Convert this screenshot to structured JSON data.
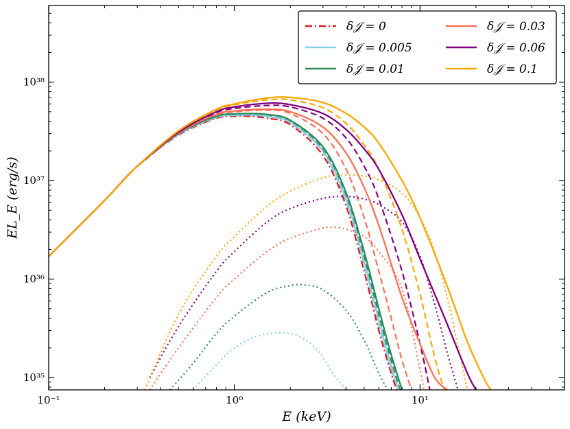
{
  "chart_data": {
    "type": "line",
    "xlabel": "E (keV)",
    "ylabel": "EL_E (erg/s)",
    "xscale": "log",
    "yscale": "log",
    "xlim": [
      0.1,
      60
    ],
    "ylim": [
      7.5e+34,
      6e+38
    ],
    "x_ticks": [
      {
        "value": 0.1,
        "label": "10⁻¹"
      },
      {
        "value": 1,
        "label": "10⁰"
      },
      {
        "value": 10,
        "label": "10¹"
      }
    ],
    "y_ticks": [
      {
        "value": 1e+35,
        "label": "10³⁵"
      },
      {
        "value": 1e+36,
        "label": "10³⁶"
      },
      {
        "value": 1e+37,
        "label": "10³⁷"
      },
      {
        "value": 1e+38,
        "label": "10³⁸"
      }
    ],
    "legend_position": "top-right",
    "line_styles": {
      "solid": "total spectrum",
      "dashed": "additional component",
      "dotted": "additional component"
    },
    "series": [
      {
        "name": "δ𝒥 = 0",
        "color": "#e41a1c",
        "style": "dashdot",
        "x": [
          0.1,
          0.2,
          0.3,
          0.5,
          0.8,
          1.0,
          1.2,
          1.5,
          2.0,
          3.0,
          4.0,
          5.0,
          6.0,
          7.0,
          7.5
        ],
        "y": [
          1.7e+36,
          6.3e+36,
          1.4e+37,
          2.9e+37,
          4.3e+37,
          4.5e+37,
          4.5e+37,
          4.3e+37,
          3.7e+37,
          1.8e+37,
          5.5e+36,
          1.2e+36,
          3e+35,
          1.1e+35,
          7.5e+34
        ]
      },
      {
        "name": "δ𝒥 = 0.005",
        "color": "#87ceeb",
        "style": "solid",
        "x": [
          0.1,
          0.2,
          0.3,
          0.5,
          0.8,
          1.0,
          1.2,
          1.5,
          2.0,
          3.0,
          4.0,
          5.0,
          6.0,
          7.0,
          7.7
        ],
        "y": [
          1.7e+36,
          6.3e+36,
          1.4e+37,
          2.95e+37,
          4.4e+37,
          4.6e+37,
          4.65e+37,
          4.5e+37,
          3.9e+37,
          2e+37,
          6.5e+36,
          1.5e+36,
          3.8e+35,
          1.3e+35,
          7.5e+34
        ]
      },
      {
        "name": "δ𝒥 = 0.01",
        "color": "#2e8b57",
        "style": "solid",
        "x": [
          0.1,
          0.2,
          0.3,
          0.5,
          0.8,
          1.0,
          1.2,
          1.5,
          2.0,
          3.0,
          4.0,
          5.0,
          6.0,
          7.0,
          8.0
        ],
        "y": [
          1.7e+36,
          6.3e+36,
          1.4e+37,
          3e+37,
          4.5e+37,
          4.75e+37,
          4.8e+37,
          4.7e+37,
          4.1e+37,
          2.2e+37,
          7.5e+36,
          1.9e+36,
          5e+35,
          1.7e+35,
          7.5e+34
        ]
      },
      {
        "name": "δ𝒥 = 0.03",
        "color": "#fa6f55",
        "style": "solid",
        "x": [
          0.1,
          0.2,
          0.3,
          0.5,
          0.8,
          1.0,
          1.5,
          2.0,
          3.0,
          4.0,
          5.0,
          6.0,
          8.0,
          10.0,
          12.0,
          14.0
        ],
        "y": [
          1.7e+36,
          6.3e+36,
          1.4e+37,
          3.05e+37,
          4.7e+37,
          5.1e+37,
          5.3e+37,
          5e+37,
          3.5e+37,
          1.9e+37,
          8.5e+36,
          3.5e+36,
          6.5e+35,
          2.2e+35,
          1e+35,
          7.5e+34
        ]
      },
      {
        "name": "δ𝒥 = 0.06",
        "color": "#800080",
        "style": "solid",
        "x": [
          0.1,
          0.2,
          0.3,
          0.5,
          0.8,
          1.0,
          1.5,
          2.0,
          3.0,
          4.0,
          5.0,
          6.0,
          8.0,
          10.0,
          14.0,
          18.0,
          20.0
        ],
        "y": [
          1.7e+36,
          6.3e+36,
          1.4e+37,
          3.1e+37,
          5e+37,
          5.6e+37,
          6.1e+37,
          5.9e+37,
          4.8e+37,
          3.3e+37,
          2.1e+37,
          1.3e+37,
          4.5e+36,
          1.6e+36,
          3.5e+35,
          1.1e+35,
          7.5e+34
        ]
      },
      {
        "name": "δ𝒥 = 0.1",
        "color": "#ffa500",
        "style": "solid",
        "x": [
          0.1,
          0.2,
          0.3,
          0.5,
          0.8,
          1.0,
          1.5,
          2.0,
          3.0,
          4.0,
          5.0,
          6.0,
          8.0,
          10.0,
          14.0,
          18.0,
          22.0,
          24.0
        ],
        "y": [
          1.7e+36,
          6.3e+36,
          1.4e+37,
          3.2e+37,
          5.3e+37,
          6e+37,
          6.9e+37,
          7e+37,
          6.2e+37,
          4.8e+37,
          3.5e+37,
          2.4e+37,
          1e+37,
          4.2e+36,
          8.5e+35,
          2.3e+35,
          1e+35,
          7.5e+34
        ]
      }
    ],
    "extra_curves": [
      {
        "color": "#87ceeb",
        "style": "dashed",
        "x": [
          0.3,
          0.5,
          0.8,
          1.0,
          1.5,
          2.0,
          3.0,
          4.0,
          5.0,
          6.0,
          7.0,
          7.5
        ],
        "y": [
          1.4e+37,
          2.95e+37,
          4.35e+37,
          4.6e+37,
          4.45e+37,
          3.85e+37,
          1.95e+37,
          6e+36,
          1.4e+36,
          3.4e+35,
          1.2e+35,
          7.5e+34
        ]
      },
      {
        "color": "#2e8b57",
        "style": "dashed",
        "x": [
          0.3,
          0.5,
          0.8,
          1.0,
          1.5,
          2.0,
          3.0,
          4.0,
          5.0,
          6.0,
          7.0,
          7.8
        ],
        "y": [
          1.4e+37,
          2.95e+37,
          4.4e+37,
          4.7e+37,
          4.6e+37,
          4e+37,
          2.1e+37,
          7e+36,
          1.7e+36,
          4.3e+35,
          1.5e+35,
          7.5e+34
        ]
      },
      {
        "color": "#fa6f55",
        "style": "dashed",
        "x": [
          0.3,
          0.5,
          0.8,
          1.0,
          1.5,
          2.0,
          3.0,
          4.0,
          5.0,
          6.0,
          7.0,
          8.0,
          9.0
        ],
        "y": [
          1.4e+37,
          3e+37,
          4.6e+37,
          5e+37,
          5.2e+37,
          4.8e+37,
          3e+37,
          1.3e+37,
          4.2e+36,
          1.2e+36,
          4e+35,
          1.5e+35,
          7.5e+34
        ]
      },
      {
        "color": "#800080",
        "style": "dashed",
        "x": [
          0.3,
          0.5,
          0.8,
          1.0,
          1.5,
          2.0,
          3.0,
          4.0,
          5.0,
          6.0,
          8.0,
          10.0,
          11.3
        ],
        "y": [
          1.4e+37,
          3.05e+37,
          4.9e+37,
          5.4e+37,
          5.8e+37,
          5.6e+37,
          4.3e+37,
          2.7e+37,
          1.4e+37,
          6.5e+36,
          1.2e+36,
          2.2e+35,
          7.5e+34
        ]
      },
      {
        "color": "#ffa500",
        "style": "dashed",
        "x": [
          0.3,
          0.5,
          0.8,
          1.0,
          1.5,
          2.0,
          3.0,
          4.0,
          5.0,
          6.0,
          8.0,
          10.0,
          12.0,
          13.5
        ],
        "y": [
          1.4e+37,
          3.15e+37,
          5.2e+37,
          5.9e+37,
          6.6e+37,
          6.6e+37,
          5.5e+37,
          3.8e+37,
          2.3e+37,
          1.3e+37,
          3.2e+36,
          7e+35,
          1.6e+35,
          7.5e+34
        ]
      },
      {
        "color": "#87ceeb",
        "style": "dotted",
        "x": [
          0.6,
          0.8,
          1.0,
          1.3,
          1.7,
          2.2,
          2.8,
          3.4,
          4.0
        ],
        "y": [
          7.5e+34,
          1.35e+35,
          2e+35,
          2.6e+35,
          2.85e+35,
          2.65e+35,
          1.9e+35,
          1.1e+35,
          7.5e+34
        ]
      },
      {
        "color": "#2e8b57",
        "style": "dotted",
        "x": [
          0.45,
          0.6,
          0.8,
          1.0,
          1.5,
          2.0,
          2.4,
          3.0,
          4.0,
          5.0,
          6.0,
          6.7
        ],
        "y": [
          7.5e+34,
          1.4e+35,
          2.8e+35,
          4.2e+35,
          7.3e+35,
          8.6e+35,
          8.7e+35,
          7.8e+35,
          4.8e+35,
          2.4e+35,
          1.1e+35,
          7.5e+34
        ]
      },
      {
        "color": "#fa6f55",
        "style": "dotted",
        "x": [
          0.35,
          0.5,
          0.8,
          1.0,
          1.5,
          2.0,
          3.0,
          3.5,
          4.0,
          5.0,
          6.0,
          8.0,
          10.0,
          10.5
        ],
        "y": [
          7.5e+34,
          2e+35,
          6.5e+35,
          1e+36,
          1.9e+36,
          2.6e+36,
          3.3e+36,
          3.35e+36,
          3.2e+36,
          2.7e+36,
          1.9e+36,
          8e+35,
          1.2e+35,
          7.5e+34
        ]
      },
      {
        "color": "#800080",
        "style": "dotted",
        "x": [
          0.35,
          0.5,
          0.8,
          1.0,
          1.5,
          2.0,
          3.0,
          4.0,
          5.0,
          6.0,
          8.0,
          10.0,
          12.0,
          14.0,
          16.0
        ],
        "y": [
          1e+35,
          3.3e+35,
          1.2e+36,
          1.9e+36,
          3.8e+36,
          5.2e+36,
          6.6e+36,
          6.9e+36,
          6.5e+36,
          5.7e+36,
          3.8e+36,
          1.7e+36,
          5.5e+35,
          1.8e+35,
          7.5e+34
        ]
      },
      {
        "color": "#ffa500",
        "style": "dotted",
        "x": [
          0.33,
          0.5,
          0.8,
          1.0,
          1.5,
          2.0,
          3.0,
          4.0,
          5.0,
          6.0,
          8.0,
          10.0,
          12.0,
          14.0,
          16.0,
          18.0
        ],
        "y": [
          7.5e+34,
          4.4e+35,
          1.7e+36,
          2.7e+36,
          5.5e+36,
          7.8e+36,
          1.07e+37,
          1.14e+37,
          1.11e+37,
          1.02e+37,
          7.5e+36,
          4.2e+36,
          1.9e+36,
          6.5e+35,
          2.1e+35,
          7.5e+34
        ]
      }
    ],
    "legend": [
      {
        "label": "δ𝒥 = 0",
        "color": "#e41a1c",
        "style": "dashdot"
      },
      {
        "label": "δ𝒥 = 0.005",
        "color": "#87ceeb",
        "style": "solid"
      },
      {
        "label": "δ𝒥 = 0.01",
        "color": "#2e8b57",
        "style": "solid"
      },
      {
        "label": "δ𝒥 = 0.03",
        "color": "#fa6f55",
        "style": "solid"
      },
      {
        "label": "δ𝒥 = 0.06",
        "color": "#800080",
        "style": "solid"
      },
      {
        "label": "δ𝒥 = 0.1",
        "color": "#ffa500",
        "style": "solid"
      }
    ]
  }
}
